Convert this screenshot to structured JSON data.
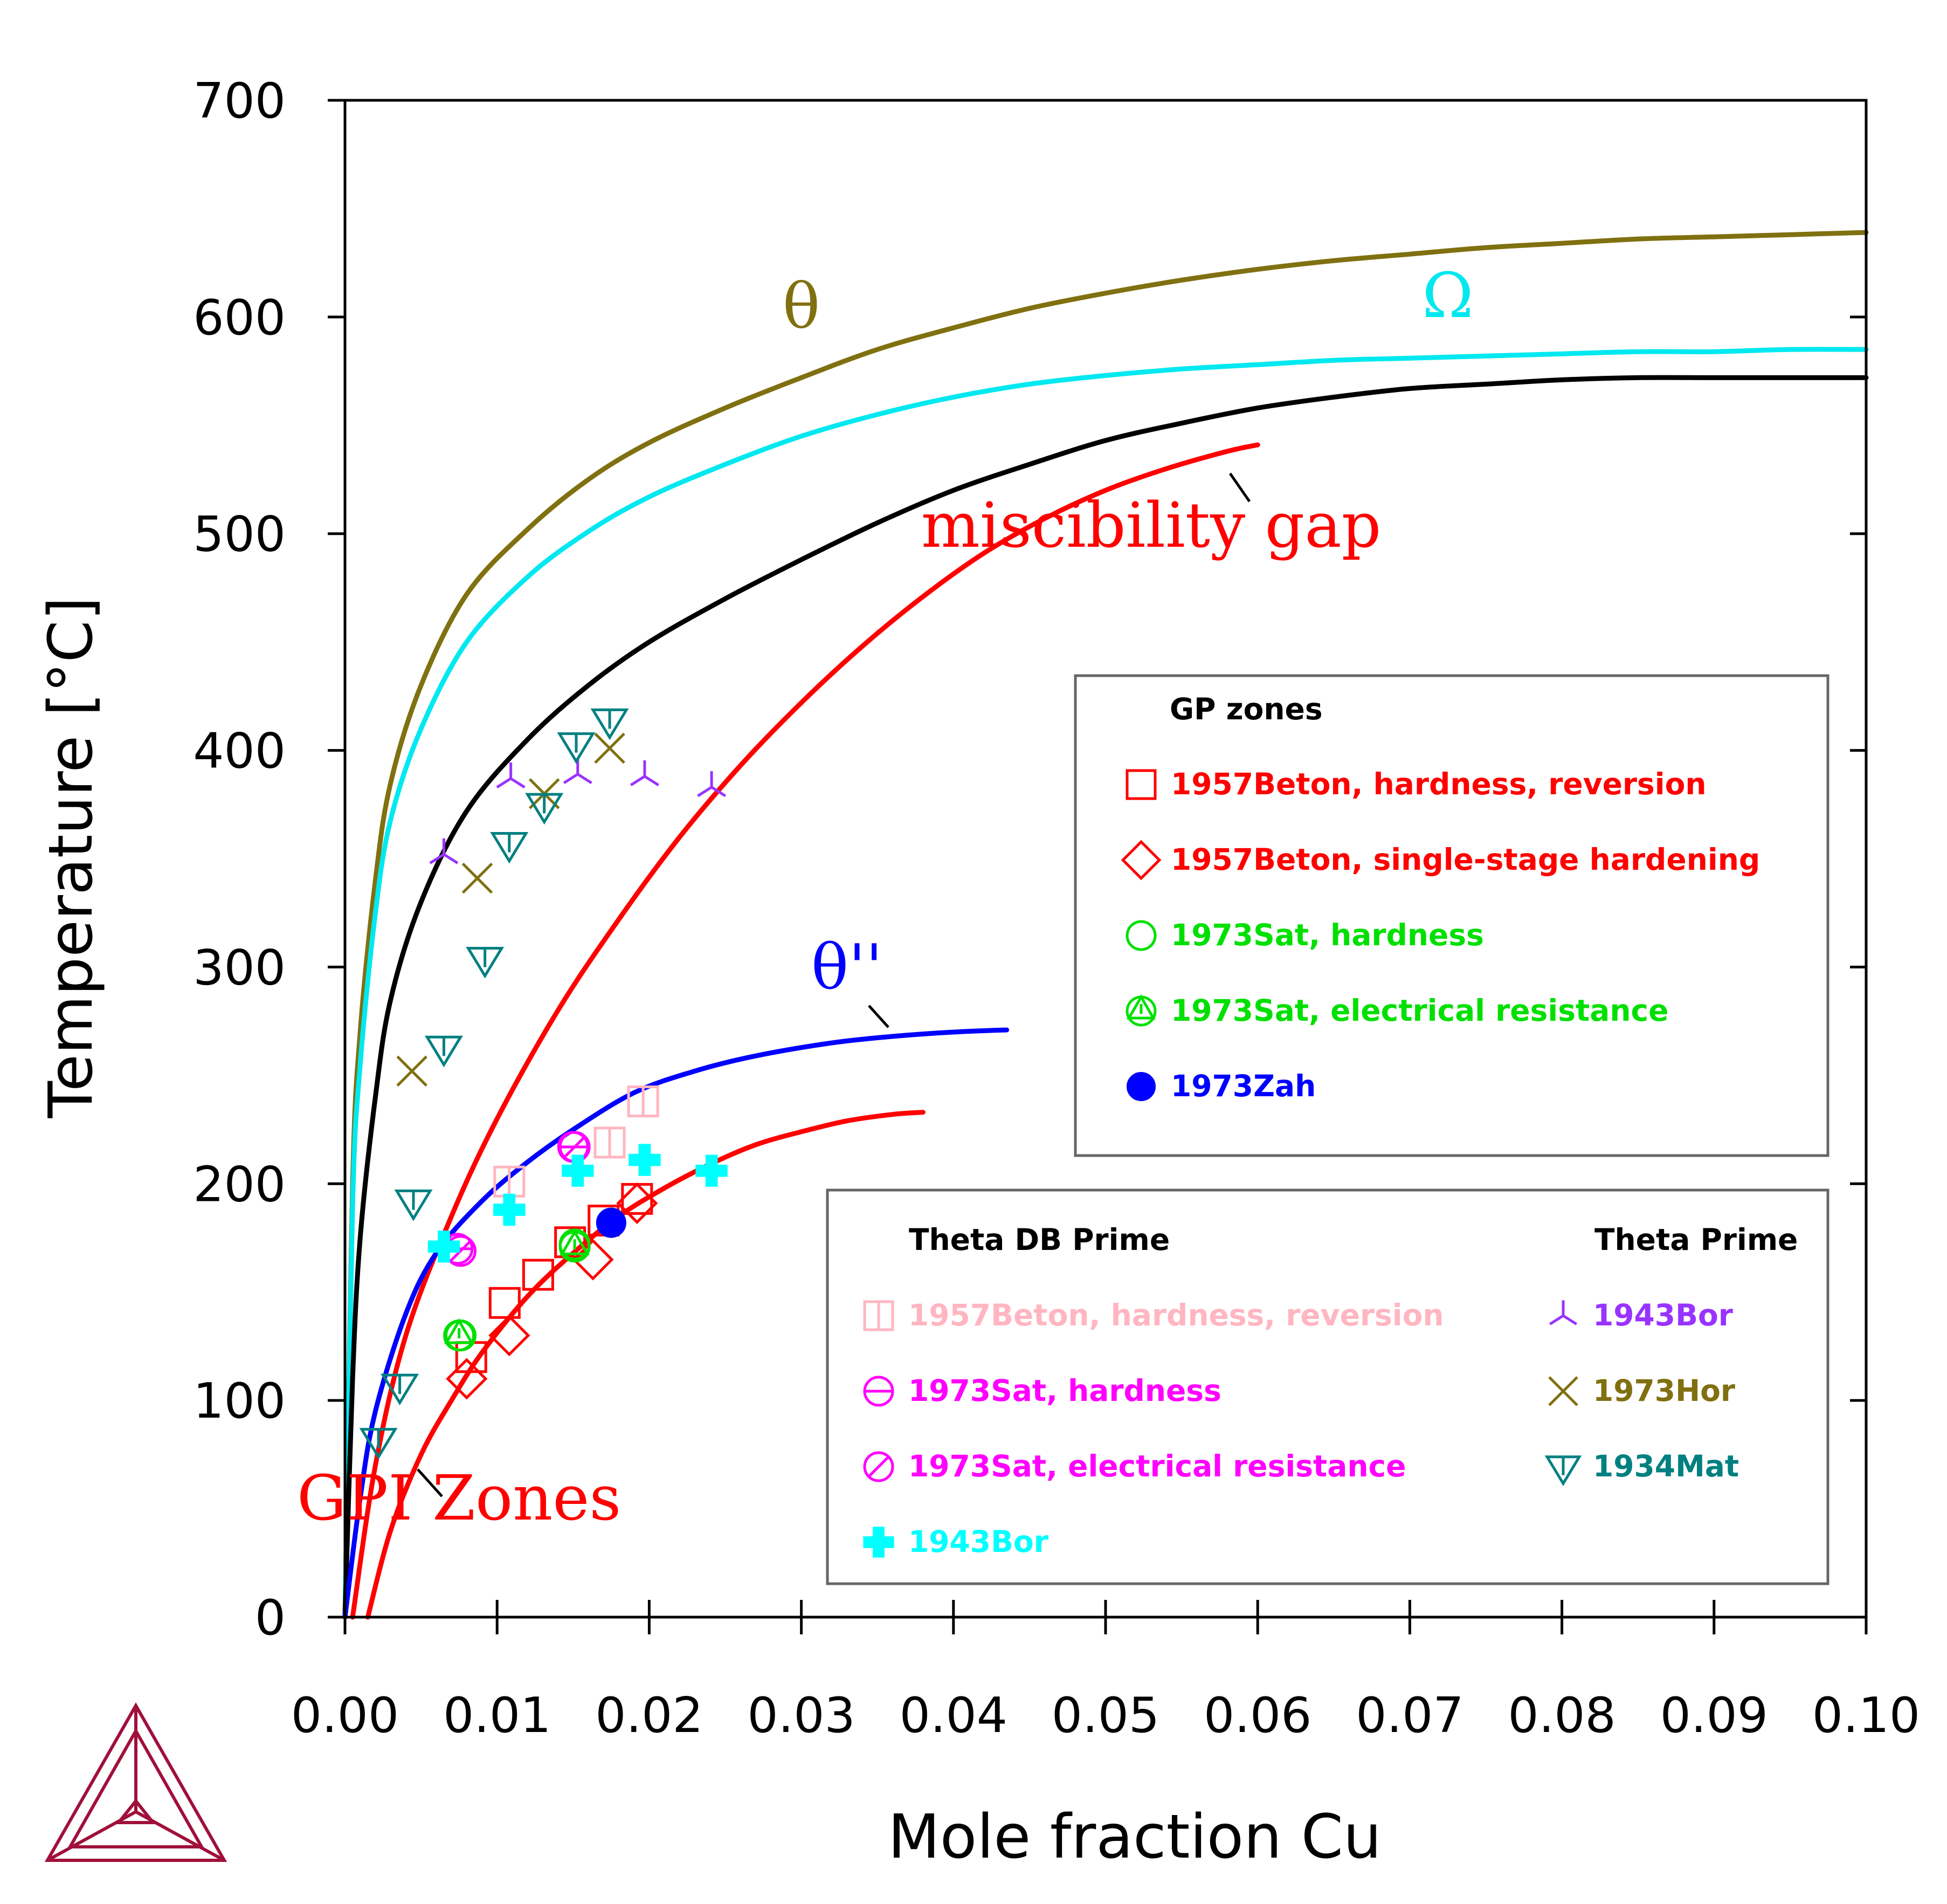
{
  "chart_data": {
    "type": "line",
    "title": "",
    "xlabel": "Mole fraction Cu",
    "ylabel": "Temperature [°C]",
    "xlim": [
      0.0,
      0.1
    ],
    "ylim": [
      0,
      700
    ],
    "x_ticks": [
      "0.00",
      "0.01",
      "0.02",
      "0.03",
      "0.04",
      "0.05",
      "0.06",
      "0.07",
      "0.08",
      "0.09",
      "0.10"
    ],
    "y_ticks": [
      "0",
      "100",
      "200",
      "300",
      "400",
      "500",
      "600",
      "700"
    ],
    "grid": false,
    "series": [
      {
        "label": "θ",
        "color": "#807010",
        "points": [
          [
            0.0,
            0
          ],
          [
            0.0005,
            200
          ],
          [
            0.001,
            270
          ],
          [
            0.002,
            340
          ],
          [
            0.003,
            385
          ],
          [
            0.005,
            430
          ],
          [
            0.008,
            472
          ],
          [
            0.012,
            502
          ],
          [
            0.016,
            525
          ],
          [
            0.02,
            542
          ],
          [
            0.025,
            558
          ],
          [
            0.03,
            572
          ],
          [
            0.035,
            585
          ],
          [
            0.04,
            595
          ],
          [
            0.045,
            604
          ],
          [
            0.05,
            611
          ],
          [
            0.055,
            617
          ],
          [
            0.06,
            622
          ],
          [
            0.065,
            626
          ],
          [
            0.07,
            629
          ],
          [
            0.075,
            632
          ],
          [
            0.08,
            634
          ],
          [
            0.085,
            636
          ],
          [
            0.09,
            637
          ],
          [
            0.095,
            638
          ],
          [
            0.1,
            639
          ]
        ]
      },
      {
        "label": "Ω",
        "color": "#00e8f0",
        "points": [
          [
            0.0,
            0
          ],
          [
            0.0005,
            190
          ],
          [
            0.001,
            255
          ],
          [
            0.002,
            325
          ],
          [
            0.003,
            368
          ],
          [
            0.005,
            410
          ],
          [
            0.008,
            450
          ],
          [
            0.012,
            480
          ],
          [
            0.016,
            501
          ],
          [
            0.02,
            517
          ],
          [
            0.025,
            532
          ],
          [
            0.03,
            545
          ],
          [
            0.035,
            555
          ],
          [
            0.04,
            563
          ],
          [
            0.045,
            569
          ],
          [
            0.05,
            573
          ],
          [
            0.055,
            576
          ],
          [
            0.06,
            578
          ],
          [
            0.065,
            580
          ],
          [
            0.07,
            581
          ],
          [
            0.075,
            582
          ],
          [
            0.08,
            583
          ],
          [
            0.085,
            584
          ],
          [
            0.09,
            584
          ],
          [
            0.095,
            585
          ],
          [
            0.1,
            585
          ]
        ]
      },
      {
        "label": "",
        "color": "#000000",
        "points": [
          [
            0.0,
            0
          ],
          [
            0.0005,
            110
          ],
          [
            0.001,
            175
          ],
          [
            0.002,
            240
          ],
          [
            0.003,
            285
          ],
          [
            0.005,
            330
          ],
          [
            0.008,
            372
          ],
          [
            0.012,
            405
          ],
          [
            0.016,
            430
          ],
          [
            0.02,
            450
          ],
          [
            0.025,
            470
          ],
          [
            0.03,
            488
          ],
          [
            0.035,
            505
          ],
          [
            0.04,
            520
          ],
          [
            0.045,
            532
          ],
          [
            0.05,
            543
          ],
          [
            0.055,
            551
          ],
          [
            0.06,
            558
          ],
          [
            0.065,
            563
          ],
          [
            0.07,
            567
          ],
          [
            0.075,
            569
          ],
          [
            0.08,
            571
          ],
          [
            0.085,
            572
          ],
          [
            0.09,
            572
          ],
          [
            0.095,
            572
          ],
          [
            0.1,
            572
          ]
        ]
      },
      {
        "label": "miscibility gap",
        "color": "#ff0000",
        "points": [
          [
            0.0005,
            0
          ],
          [
            0.002,
            70
          ],
          [
            0.004,
            130
          ],
          [
            0.007,
            185
          ],
          [
            0.01,
            230
          ],
          [
            0.014,
            280
          ],
          [
            0.018,
            322
          ],
          [
            0.022,
            360
          ],
          [
            0.026,
            393
          ],
          [
            0.03,
            422
          ],
          [
            0.034,
            448
          ],
          [
            0.038,
            471
          ],
          [
            0.042,
            491
          ],
          [
            0.046,
            507
          ],
          [
            0.05,
            520
          ],
          [
            0.054,
            530
          ],
          [
            0.058,
            538
          ],
          [
            0.06,
            541
          ]
        ]
      },
      {
        "label": "θ''",
        "color": "#0000ff",
        "points": [
          [
            0.0,
            0
          ],
          [
            0.001,
            55
          ],
          [
            0.002,
            95
          ],
          [
            0.004,
            140
          ],
          [
            0.006,
            168
          ],
          [
            0.009,
            192
          ],
          [
            0.012,
            210
          ],
          [
            0.015,
            225
          ],
          [
            0.019,
            242
          ],
          [
            0.023,
            252
          ],
          [
            0.027,
            259
          ],
          [
            0.032,
            265
          ],
          [
            0.036,
            268
          ],
          [
            0.04,
            270
          ],
          [
            0.0435,
            271
          ]
        ]
      },
      {
        "label": "GPI Zones",
        "color": "#ff0000",
        "points": [
          [
            0.0015,
            0
          ],
          [
            0.003,
            40
          ],
          [
            0.005,
            75
          ],
          [
            0.007,
            100
          ],
          [
            0.009,
            122
          ],
          [
            0.012,
            148
          ],
          [
            0.015,
            168
          ],
          [
            0.018,
            185
          ],
          [
            0.021,
            198
          ],
          [
            0.024,
            209
          ],
          [
            0.027,
            218
          ],
          [
            0.03,
            224
          ],
          [
            0.033,
            229
          ],
          [
            0.036,
            232
          ],
          [
            0.038,
            233
          ]
        ]
      }
    ],
    "curve_labels": [
      {
        "text": "θ",
        "color": "#807010",
        "x": 0.03,
        "y": 595
      },
      {
        "text": "Ω",
        "color": "#00e8f0",
        "x": 0.0725,
        "y": 600
      },
      {
        "text": "miscibility gap",
        "color": "#ff0000",
        "x": 0.053,
        "y": 494
      },
      {
        "text": "θ''",
        "color": "#0000ff",
        "x": 0.033,
        "y": 290
      },
      {
        "text": "GPI Zones",
        "color": "#ff0000",
        "x": 0.0075,
        "y": 45
      }
    ],
    "points": [
      {
        "set": "GP zones",
        "label": "1957Beton, hardness, reversion",
        "marker": "square",
        "color": "#ff0000",
        "data": [
          [
            0.0083,
            120
          ],
          [
            0.0105,
            145
          ],
          [
            0.0127,
            158
          ],
          [
            0.0148,
            173
          ],
          [
            0.017,
            183
          ],
          [
            0.0192,
            193
          ]
        ]
      },
      {
        "set": "GP zones",
        "label": "1957Beton, single-stage hardening",
        "marker": "diamond",
        "color": "#ff0000",
        "data": [
          [
            0.008,
            110
          ],
          [
            0.0108,
            130
          ],
          [
            0.0163,
            165
          ],
          [
            0.0192,
            191
          ]
        ]
      },
      {
        "set": "GP zones",
        "label": "1973Sat, hardness",
        "marker": "circle",
        "color": "#00e000",
        "data": [
          [
            0.0076,
            130
          ],
          [
            0.0151,
            172
          ]
        ]
      },
      {
        "set": "GP zones",
        "label": "1973Sat, electrical resistance",
        "marker": "triangle-in-circle",
        "color": "#00e000",
        "data": [
          [
            0.0075,
            130
          ],
          [
            0.0151,
            171
          ]
        ]
      },
      {
        "set": "GP zones",
        "label": "1973Zah",
        "marker": "filled-circle",
        "color": "#0000ff",
        "data": [
          [
            0.0175,
            182
          ]
        ]
      },
      {
        "set": "Theta DB Prime",
        "label": "1957Beton, hardness, reversion",
        "marker": "split-square",
        "color": "#ffb6c1",
        "data": [
          [
            0.0108,
            201
          ],
          [
            0.0174,
            219
          ],
          [
            0.0196,
            238
          ]
        ]
      },
      {
        "set": "Theta DB Prime",
        "label": "1973Sat, hardness",
        "marker": "circle-minus",
        "color": "#ff00ff",
        "data": [
          [
            0.0074,
            170
          ],
          [
            0.015,
            217
          ]
        ]
      },
      {
        "set": "Theta DB Prime",
        "label": "1973Sat, electrical resistance",
        "marker": "circle-slash",
        "color": "#ff00ff",
        "data": [
          [
            0.0076,
            169
          ],
          [
            0.0151,
            217
          ]
        ]
      },
      {
        "set": "Theta DB Prime",
        "label": "1943Bor",
        "marker": "cross",
        "color": "#00ffff",
        "data": [
          [
            0.0065,
            171
          ],
          [
            0.0108,
            188
          ],
          [
            0.0153,
            206
          ],
          [
            0.0197,
            211
          ],
          [
            0.0241,
            206
          ]
        ]
      },
      {
        "set": "Theta Prime",
        "label": "1943Bor",
        "marker": "tri-down",
        "color": "#9933ff",
        "data": [
          [
            0.0065,
            352
          ],
          [
            0.0109,
            387
          ],
          [
            0.0153,
            389
          ],
          [
            0.0197,
            388
          ],
          [
            0.0241,
            383
          ]
        ]
      },
      {
        "set": "Theta Prime",
        "label": "1973Hor",
        "marker": "x",
        "color": "#807010",
        "data": [
          [
            0.0044,
            252
          ],
          [
            0.0087,
            341
          ],
          [
            0.0131,
            380
          ],
          [
            0.0174,
            401
          ]
        ]
      },
      {
        "set": "Theta Prime",
        "label": "1934Mat",
        "marker": "triangle-down",
        "color": "#008080",
        "data": [
          [
            0.0022,
            82
          ],
          [
            0.0036,
            107
          ],
          [
            0.0045,
            192
          ],
          [
            0.0065,
            263
          ],
          [
            0.0092,
            304
          ],
          [
            0.0108,
            357
          ],
          [
            0.0131,
            375
          ],
          [
            0.0152,
            403
          ],
          [
            0.0174,
            414
          ]
        ]
      }
    ],
    "legends": [
      {
        "title": "GP zones",
        "items": [
          {
            "label": "1957Beton, hardness, reversion",
            "marker": "square",
            "color": "#ff0000"
          },
          {
            "label": "1957Beton, single-stage hardening",
            "marker": "diamond",
            "color": "#ff0000"
          },
          {
            "label": "1973Sat, hardness",
            "marker": "circle",
            "color": "#00e000"
          },
          {
            "label": "1973Sat, electrical resistance",
            "marker": "triangle-in-circle",
            "color": "#00e000"
          },
          {
            "label": "1973Zah",
            "marker": "filled-circle",
            "color": "#0000ff"
          }
        ]
      },
      {
        "title": "Theta DB Prime",
        "items": [
          {
            "label": "1957Beton, hardness, reversion",
            "marker": "split-square",
            "color": "#ffb6c1"
          },
          {
            "label": "1973Sat, hardness",
            "marker": "circle-minus",
            "color": "#ff00ff"
          },
          {
            "label": "1973Sat, electrical resistance",
            "marker": "circle-slash",
            "color": "#ff00ff"
          },
          {
            "label": "1943Bor",
            "marker": "cross",
            "color": "#00ffff"
          }
        ]
      },
      {
        "title": "Theta Prime",
        "items": [
          {
            "label": "1943Bor",
            "marker": "tri-down",
            "color": "#9933ff"
          },
          {
            "label": "1973Hor",
            "marker": "x",
            "color": "#807010"
          },
          {
            "label": "1934Mat",
            "marker": "triangle-down",
            "color": "#008080"
          }
        ]
      }
    ]
  },
  "logo": {
    "name": "thermo-calc-logo",
    "color": "#a0103a"
  }
}
